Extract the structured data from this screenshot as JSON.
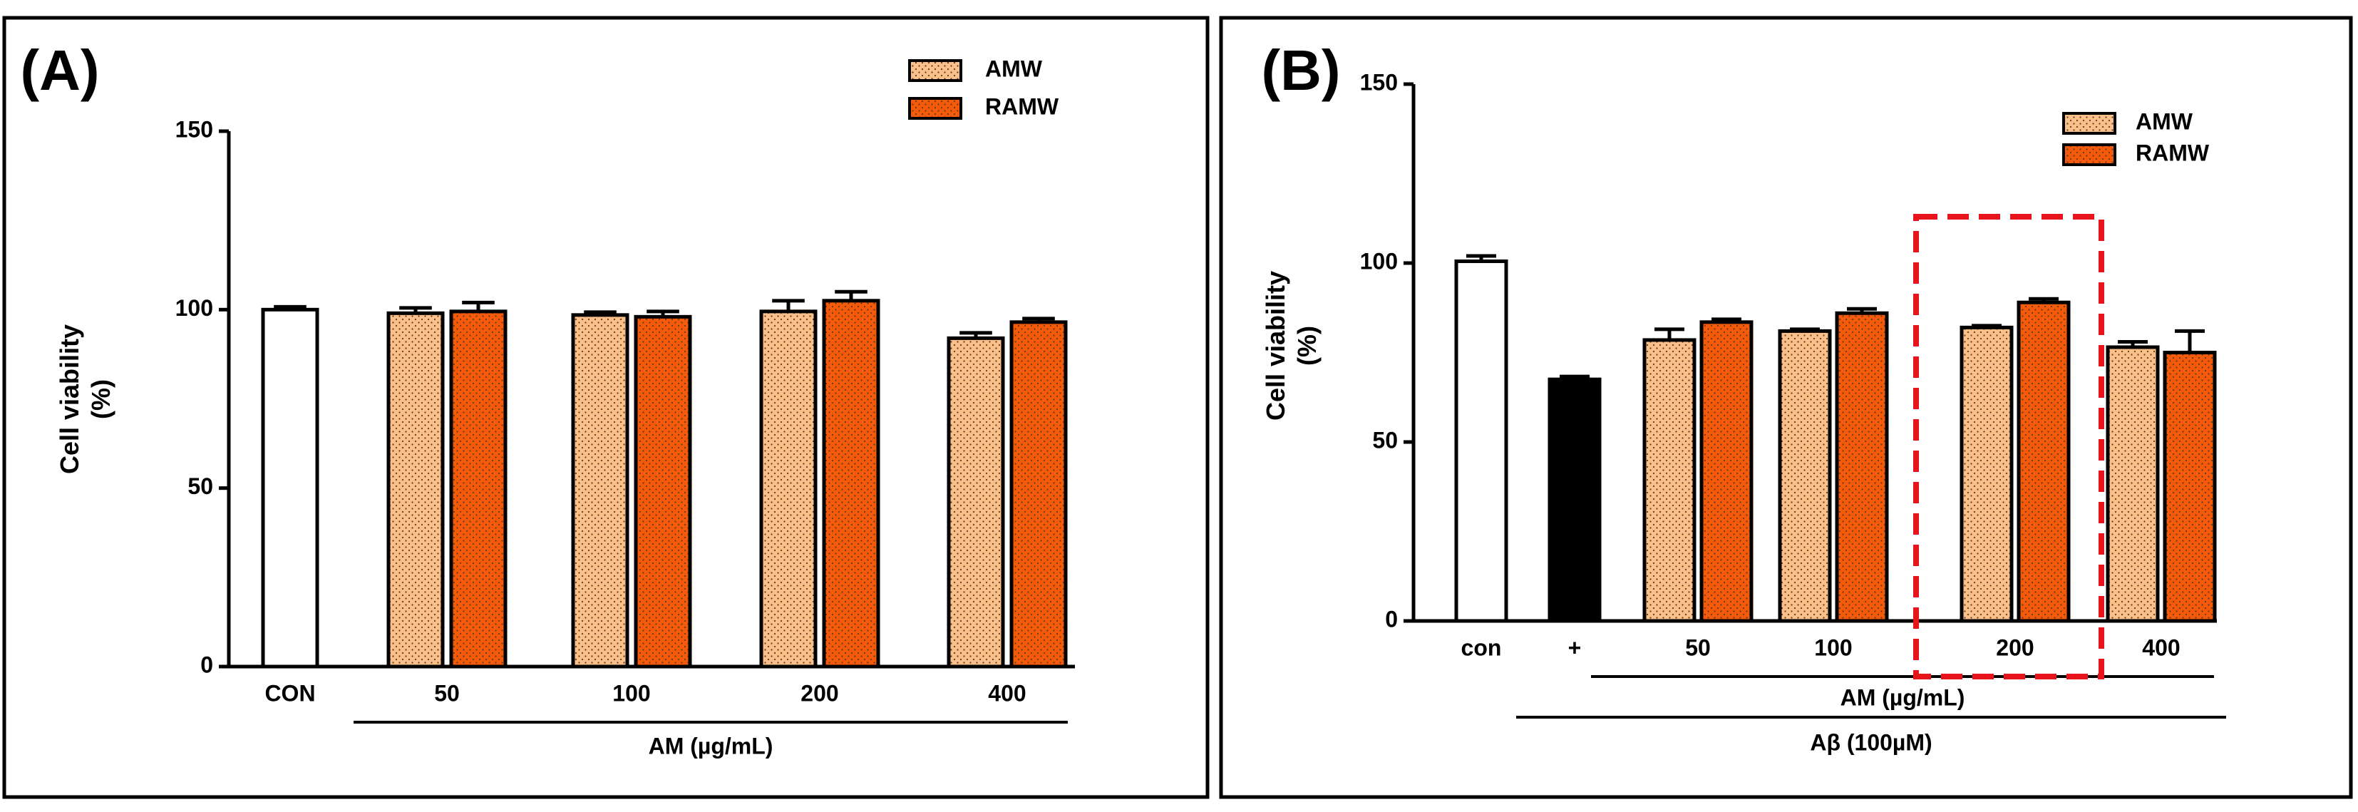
{
  "chart_data": [
    {
      "type": "bar",
      "title": "(A)",
      "ylabel": [
        "Cell viability",
        "(%)"
      ],
      "categories": [
        "CON",
        "50",
        "100",
        "200",
        "400"
      ],
      "group_labels": [
        "AM (µg/mL)"
      ],
      "ylim": [
        0,
        150
      ],
      "yticks": [
        0,
        50,
        100,
        150
      ],
      "legend": "upper right",
      "series": [
        {
          "color": "#ffffff",
          "legend": false,
          "values": [
            100,
            null,
            null,
            null,
            null
          ],
          "errors": [
            0.8,
            null,
            null,
            null,
            null
          ]
        },
        {
          "name": "AMW",
          "color": "#fbc08a",
          "pattern": "dots",
          "values": [
            null,
            99,
            98.5,
            99.5,
            92
          ],
          "errors": [
            null,
            1.5,
            0.8,
            3,
            1.5
          ]
        },
        {
          "name": "RAMW",
          "color": "#f55a0a",
          "pattern": "dots",
          "values": [
            null,
            99.5,
            98,
            102.5,
            96.5
          ],
          "errors": [
            null,
            2.5,
            1.5,
            2.5,
            1
          ]
        }
      ]
    },
    {
      "type": "bar",
      "title": "(B)",
      "ylabel": [
        "Cell viability",
        "(%)"
      ],
      "categories": [
        "con",
        "+",
        "50",
        "100",
        "200",
        "400"
      ],
      "group_labels": [
        "AM (µg/mL)",
        "Aβ (100µM)"
      ],
      "ylim": [
        0,
        150
      ],
      "yticks": [
        0,
        50,
        100,
        150
      ],
      "legend": "upper right",
      "series": [
        {
          "color": "#ffffff",
          "legend": false,
          "values": [
            100.5,
            null,
            null,
            null,
            null,
            null
          ],
          "errors": [
            1.5,
            null,
            null,
            null,
            null,
            null
          ]
        },
        {
          "color": "#000000",
          "legend": false,
          "values": [
            null,
            67.5,
            null,
            null,
            null,
            null
          ],
          "errors": [
            null,
            0.8,
            null,
            null,
            null,
            null
          ]
        },
        {
          "name": "AMW",
          "color": "#fbc08a",
          "pattern": "dots",
          "values": [
            null,
            null,
            78.5,
            81,
            82,
            76.5
          ],
          "errors": [
            null,
            null,
            3,
            0.5,
            0.5,
            1.5
          ]
        },
        {
          "name": "RAMW",
          "color": "#f55a0a",
          "pattern": "dots",
          "values": [
            null,
            null,
            83.5,
            86,
            89,
            75
          ],
          "errors": [
            null,
            null,
            0.8,
            1.2,
            1,
            6
          ]
        }
      ]
    }
  ]
}
